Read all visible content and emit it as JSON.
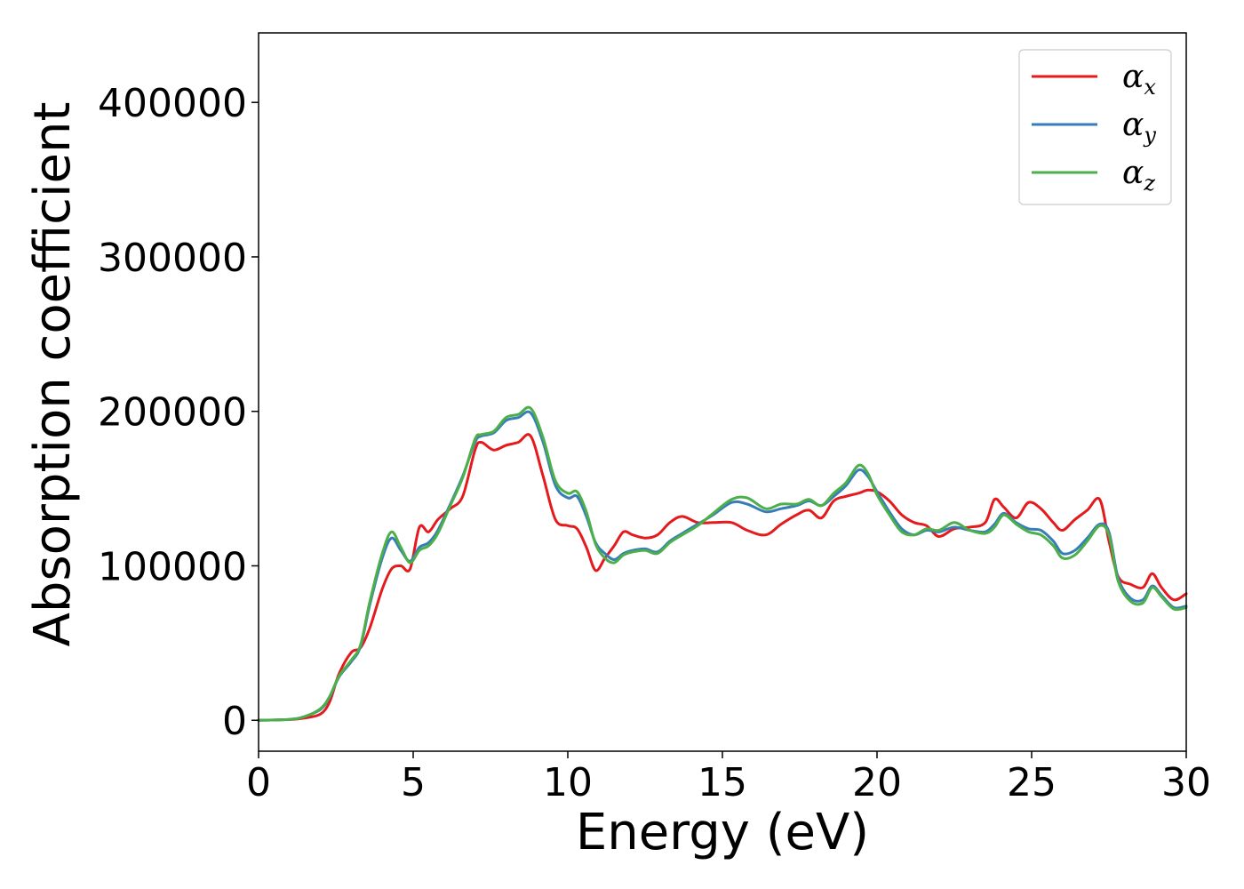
{
  "chart_data": {
    "type": "line",
    "title": "",
    "xlabel": "Energy (eV)",
    "ylabel": "Absorption coefficient",
    "xlim": [
      0,
      30
    ],
    "ylim": [
      -20000,
      445000
    ],
    "xticks": [
      0,
      5,
      10,
      15,
      20,
      25,
      30
    ],
    "yticks": [
      0,
      100000,
      200000,
      300000,
      400000
    ],
    "grid": false,
    "legend_position": "top-right",
    "series": [
      {
        "name": "αx",
        "symbol": "α",
        "subscript": "x",
        "color": "#e41a1c",
        "x": [
          0,
          1,
          1.5,
          2,
          2.3,
          2.6,
          3,
          3.3,
          3.6,
          4,
          4.3,
          4.6,
          4.9,
          5.2,
          5.5,
          5.8,
          6.2,
          6.6,
          7,
          7.2,
          7.6,
          8,
          8.4,
          8.8,
          9.2,
          9.6,
          10,
          10.3,
          10.6,
          10.9,
          11.2,
          11.5,
          11.8,
          12.1,
          12.5,
          12.9,
          13.3,
          13.7,
          14.2,
          14.7,
          15.3,
          15.8,
          16.4,
          16.9,
          17.4,
          17.8,
          18.2,
          18.6,
          19,
          19.4,
          19.7,
          20,
          20.4,
          20.8,
          21.2,
          21.6,
          22,
          22.5,
          23,
          23.5,
          23.8,
          24.1,
          24.5,
          24.9,
          25.3,
          25.7,
          26,
          26.4,
          26.8,
          27.2,
          27.5,
          27.8,
          28.2,
          28.6,
          28.9,
          29.2,
          29.6,
          30
        ],
        "y": [
          0,
          500,
          1500,
          4000,
          12000,
          30000,
          44000,
          47000,
          60000,
          85000,
          98000,
          100000,
          98000,
          125000,
          122000,
          130000,
          137000,
          145000,
          175000,
          180000,
          175000,
          178000,
          180000,
          184000,
          158000,
          130000,
          126000,
          124000,
          112000,
          97000,
          105000,
          113000,
          122000,
          120000,
          118000,
          120000,
          128000,
          132000,
          128000,
          128000,
          128000,
          123000,
          120000,
          127000,
          133000,
          136000,
          131000,
          142000,
          145000,
          147000,
          149000,
          148000,
          142000,
          133000,
          128000,
          126000,
          119000,
          124000,
          125000,
          128000,
          143000,
          138000,
          131000,
          141000,
          137000,
          128000,
          123000,
          130000,
          136000,
          143000,
          116000,
          93000,
          88000,
          86000,
          95000,
          86000,
          78000,
          82000
        ]
      },
      {
        "name": "αy",
        "symbol": "α",
        "subscript": "y",
        "color": "#377eb8",
        "x": [
          0,
          1,
          1.5,
          2,
          2.3,
          2.6,
          3,
          3.3,
          3.6,
          4,
          4.3,
          4.6,
          4.9,
          5.2,
          5.5,
          5.8,
          6.2,
          6.6,
          7,
          7.2,
          7.6,
          8,
          8.4,
          8.8,
          9.2,
          9.6,
          10,
          10.3,
          10.6,
          10.9,
          11.2,
          11.5,
          11.8,
          12.1,
          12.5,
          12.9,
          13.3,
          13.7,
          14.2,
          14.7,
          15.3,
          15.8,
          16.4,
          16.9,
          17.4,
          17.8,
          18.2,
          18.6,
          19,
          19.4,
          19.7,
          20,
          20.4,
          20.8,
          21.2,
          21.6,
          22,
          22.5,
          23,
          23.5,
          23.8,
          24.1,
          24.5,
          24.9,
          25.3,
          25.7,
          26,
          26.4,
          26.8,
          27.2,
          27.5,
          27.8,
          28.2,
          28.6,
          28.9,
          29.2,
          29.6,
          30
        ],
        "y": [
          0,
          600,
          2500,
          7000,
          15000,
          28000,
          38000,
          48000,
          75000,
          105000,
          118000,
          110000,
          103000,
          112000,
          115000,
          123000,
          140000,
          158000,
          180000,
          184000,
          186000,
          194000,
          196000,
          199000,
          180000,
          152000,
          144000,
          145000,
          132000,
          115000,
          108000,
          104000,
          108000,
          110000,
          111000,
          109000,
          116000,
          121000,
          127000,
          133000,
          141000,
          140000,
          135000,
          137000,
          139000,
          142000,
          139000,
          145000,
          152000,
          162000,
          158000,
          148000,
          135000,
          124000,
          120000,
          123000,
          122000,
          125000,
          123000,
          122000,
          127000,
          134000,
          128000,
          124000,
          123000,
          116000,
          108000,
          110000,
          118000,
          127000,
          122000,
          92000,
          79000,
          78000,
          87000,
          81000,
          73000,
          74000
        ]
      },
      {
        "name": "αz",
        "symbol": "α",
        "subscript": "z",
        "color": "#4daf4a",
        "x": [
          0,
          1,
          1.5,
          2,
          2.3,
          2.6,
          3,
          3.3,
          3.6,
          4,
          4.3,
          4.6,
          4.9,
          5.2,
          5.5,
          5.8,
          6.2,
          6.6,
          7,
          7.2,
          7.6,
          8,
          8.4,
          8.8,
          9.2,
          9.6,
          10,
          10.3,
          10.6,
          10.9,
          11.2,
          11.5,
          11.8,
          12.1,
          12.5,
          12.9,
          13.3,
          13.7,
          14.2,
          14.7,
          15.3,
          15.8,
          16.4,
          16.9,
          17.4,
          17.8,
          18.2,
          18.6,
          19,
          19.4,
          19.7,
          20,
          20.4,
          20.8,
          21.2,
          21.6,
          22,
          22.5,
          23,
          23.5,
          23.8,
          24.1,
          24.5,
          24.9,
          25.3,
          25.7,
          26,
          26.4,
          26.8,
          27.2,
          27.5,
          27.8,
          28.2,
          28.6,
          28.9,
          29.2,
          29.6,
          30
        ],
        "y": [
          0,
          600,
          2500,
          7500,
          15500,
          28500,
          39000,
          49000,
          77000,
          108000,
          122000,
          112000,
          102000,
          110000,
          113000,
          121000,
          139000,
          157000,
          182000,
          185000,
          187000,
          196000,
          198000,
          202000,
          183000,
          155000,
          147000,
          148000,
          135000,
          114000,
          105000,
          102000,
          107000,
          109000,
          110000,
          108000,
          115000,
          120000,
          126000,
          134000,
          143000,
          144000,
          137000,
          140000,
          140000,
          143000,
          139000,
          147000,
          154000,
          165000,
          160000,
          146000,
          133000,
          122000,
          120000,
          124000,
          123000,
          128000,
          123000,
          121000,
          125000,
          133000,
          127000,
          122000,
          120000,
          113000,
          105000,
          107000,
          116000,
          126000,
          120000,
          90000,
          77000,
          76000,
          86000,
          80000,
          72000,
          73000
        ]
      }
    ]
  }
}
